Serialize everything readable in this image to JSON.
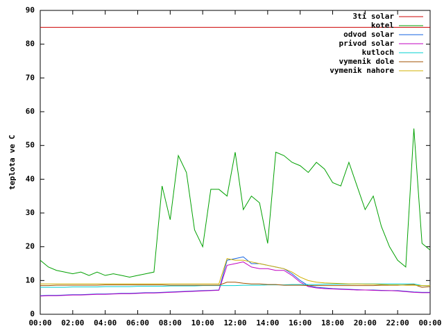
{
  "chart_data": {
    "type": "line",
    "y_label": "teplota ve C",
    "x": [
      0,
      0.5,
      1,
      1.5,
      2,
      2.5,
      3,
      3.5,
      4,
      4.5,
      5,
      5.5,
      6,
      6.5,
      7,
      7.5,
      8,
      8.5,
      9,
      9.5,
      10,
      10.5,
      11,
      11.5,
      12,
      12.5,
      13,
      13.5,
      14,
      14.5,
      15,
      15.5,
      16,
      16.5,
      17,
      17.5,
      18,
      18.5,
      19,
      19.5,
      20,
      20.5,
      21,
      21.5,
      22,
      22.5,
      23,
      23.5,
      24
    ],
    "xlim": [
      0,
      24
    ],
    "xticks": [
      {
        "value": 0,
        "label": "00:00"
      },
      {
        "value": 2,
        "label": "02:00"
      },
      {
        "value": 4,
        "label": "04:00"
      },
      {
        "value": 6,
        "label": "06:00"
      },
      {
        "value": 8,
        "label": "08:00"
      },
      {
        "value": 10,
        "label": "10:00"
      },
      {
        "value": 12,
        "label": "12:00"
      },
      {
        "value": 14,
        "label": "14:00"
      },
      {
        "value": 16,
        "label": "16:00"
      },
      {
        "value": 18,
        "label": "18:00"
      },
      {
        "value": 20,
        "label": "20:00"
      },
      {
        "value": 22,
        "label": "22:00"
      },
      {
        "value": 24,
        "label": "00:00"
      }
    ],
    "ylim": [
      0,
      90
    ],
    "yticks": [
      0,
      10,
      20,
      30,
      40,
      50,
      60,
      70,
      80,
      90
    ],
    "legend": "top-right",
    "series": [
      {
        "name": "3ti solar",
        "color": "#cc0000",
        "values": [
          85,
          85,
          85,
          85,
          85,
          85,
          85,
          85,
          85,
          85,
          85,
          85,
          85,
          85,
          85,
          85,
          85,
          85,
          85,
          85,
          85,
          85,
          85,
          85,
          85,
          85,
          85,
          85,
          85,
          85,
          85,
          85,
          85,
          85,
          85,
          85,
          85,
          85,
          85,
          85,
          85,
          85,
          85,
          85,
          85,
          85,
          85,
          85,
          85
        ]
      },
      {
        "name": "kotel",
        "color": "#00a000",
        "values": [
          16,
          14,
          13,
          12.5,
          12,
          12.5,
          11.5,
          12.5,
          11.5,
          12,
          11.5,
          11,
          11.5,
          12,
          12.5,
          38,
          28,
          47,
          42,
          25,
          20,
          37,
          37,
          35,
          48,
          31,
          35,
          33,
          21,
          48,
          47,
          45,
          44,
          42,
          45,
          43,
          39,
          38,
          45,
          38,
          31,
          35,
          26,
          20,
          16,
          14,
          55,
          21,
          19
        ]
      },
      {
        "name": "odvod solar",
        "color": "#1060e0",
        "values": [
          5.5,
          5.6,
          5.6,
          5.7,
          5.8,
          5.8,
          5.9,
          6.0,
          6.0,
          6.1,
          6.2,
          6.2,
          6.3,
          6.4,
          6.4,
          6.5,
          6.6,
          6.7,
          6.8,
          6.9,
          7.0,
          7.1,
          7.2,
          16,
          16.5,
          17,
          15,
          15,
          14.5,
          14,
          13.5,
          12,
          10,
          8.5,
          8,
          7.8,
          7.6,
          7.5,
          7.4,
          7.3,
          7.2,
          7.2,
          7.1,
          7.0,
          7.0,
          6.8,
          6.6,
          6.5,
          6.5
        ]
      },
      {
        "name": "privod solar",
        "color": "#c000c0",
        "values": [
          5.4,
          5.5,
          5.5,
          5.6,
          5.7,
          5.7,
          5.8,
          5.9,
          5.9,
          6.0,
          6.1,
          6.1,
          6.2,
          6.3,
          6.3,
          6.4,
          6.5,
          6.6,
          6.7,
          6.8,
          6.9,
          7.0,
          7.1,
          14.5,
          15,
          15.5,
          14,
          13.5,
          13.5,
          13,
          13,
          11.5,
          9.5,
          8.2,
          7.8,
          7.6,
          7.5,
          7.4,
          7.3,
          7.2,
          7.2,
          7.1,
          7.0,
          7.0,
          6.9,
          6.7,
          6.5,
          6.4,
          6.4
        ]
      },
      {
        "name": "kutloch",
        "color": "#00d0d0",
        "values": [
          8.0,
          8.0,
          8.0,
          8.0,
          8.1,
          8.1,
          8.1,
          8.1,
          8.2,
          8.2,
          8.2,
          8.2,
          8.3,
          8.3,
          8.3,
          8.3,
          8.4,
          8.4,
          8.4,
          8.4,
          8.5,
          8.5,
          8.5,
          8.5,
          8.5,
          8.6,
          8.6,
          8.6,
          8.7,
          8.7,
          8.7,
          8.8,
          8.8,
          8.8,
          8.8,
          8.9,
          8.9,
          8.9,
          8.9,
          9.0,
          9.0,
          9.0,
          9.0,
          9.0,
          9.0,
          9.0,
          9.0,
          8.5,
          8.5
        ]
      },
      {
        "name": "vymenik dole",
        "color": "#a05000",
        "values": [
          8.5,
          8.5,
          8.6,
          8.6,
          8.6,
          8.6,
          8.6,
          8.6,
          8.7,
          8.7,
          8.7,
          8.7,
          8.7,
          8.7,
          8.7,
          8.7,
          8.6,
          8.6,
          8.6,
          8.6,
          8.6,
          8.6,
          8.6,
          9.5,
          9.5,
          9.2,
          9.0,
          9.0,
          8.8,
          8.8,
          8.6,
          8.6,
          8.6,
          8.5,
          8.5,
          8.5,
          8.5,
          8.5,
          8.5,
          8.5,
          8.5,
          8.5,
          8.6,
          8.6,
          8.6,
          8.7,
          8.8,
          8.0,
          8.2
        ]
      },
      {
        "name": "vymenik nahore",
        "color": "#d0b000",
        "values": [
          9,
          9,
          9,
          9,
          9,
          9,
          9,
          9,
          9,
          9,
          9,
          9,
          9,
          9,
          9,
          9,
          9,
          9,
          9,
          9,
          9,
          9,
          9,
          16.5,
          16,
          16,
          15.5,
          15,
          14.5,
          14,
          13.5,
          12.5,
          11,
          10,
          9.5,
          9.3,
          9.2,
          9.1,
          9.0,
          9.0,
          8.9,
          8.9,
          8.8,
          8.7,
          8.7,
          8.6,
          8.6,
          8.5,
          8.5
        ]
      }
    ]
  }
}
